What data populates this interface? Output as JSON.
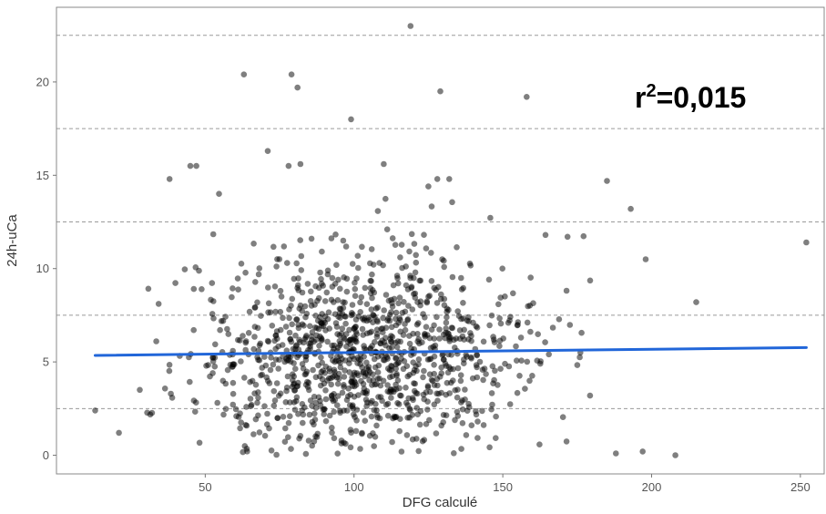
{
  "chart_data": {
    "type": "scatter",
    "xlabel": "DFG calculé",
    "ylabel": "24h-uCa",
    "xlim": [
      0,
      258
    ],
    "ylim": [
      -1,
      24
    ],
    "x_ticks": [
      50,
      100,
      150,
      200,
      250
    ],
    "y_ticks": [
      0,
      5,
      10,
      15,
      20
    ],
    "y_gridlines": [
      2.5,
      7.5,
      12.5,
      17.5,
      22.5
    ],
    "grid": "horizontal-dashed",
    "annotation": {
      "base": "r",
      "sup": "2",
      "rest": "=0,015"
    },
    "regression_line": {
      "x": [
        13,
        252
      ],
      "y": [
        5.35,
        5.77
      ],
      "color": "#2166d9"
    },
    "point_color": "#000000",
    "highlight_points": {
      "x": [
        119,
        63,
        79,
        81,
        129,
        158,
        99,
        71,
        47,
        45,
        38,
        82,
        78,
        110,
        125,
        128,
        132,
        185,
        193,
        252,
        198,
        215,
        208,
        13,
        21,
        28,
        188,
        197
      ],
      "y": [
        23.0,
        20.4,
        20.4,
        19.7,
        19.5,
        19.2,
        18.0,
        16.3,
        15.5,
        15.5,
        14.8,
        15.6,
        15.5,
        15.6,
        14.4,
        14.8,
        14.8,
        14.7,
        13.2,
        11.4,
        10.5,
        8.2,
        0.0,
        2.4,
        1.2,
        3.5,
        0.1,
        0.2
      ]
    },
    "generated_cluster": {
      "count": 1150,
      "x_mean": 103,
      "x_sd": 28,
      "y_mean": 5.3,
      "y_sd": 2.8,
      "x_range": [
        25,
        192
      ],
      "y_range": [
        0,
        14.2
      ]
    }
  }
}
